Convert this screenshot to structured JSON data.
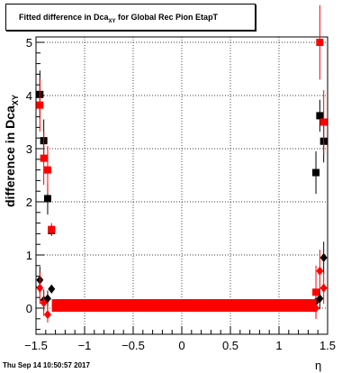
{
  "chart_data": {
    "type": "scatter",
    "title": {
      "main": "Fitted difference in Dca",
      "sub": "XY",
      "rest": " for Global Rec Pion EtapT"
    },
    "ylabel": {
      "main": "difference in Dca",
      "sub": "XY"
    },
    "xlabel": "η",
    "xlim": [
      -1.5,
      1.5
    ],
    "ylim": [
      -0.5,
      5.1
    ],
    "x_ticks": [
      -1.5,
      -1,
      -0.5,
      0,
      0.5,
      1,
      1.5
    ],
    "x_tick_labels": [
      "−1.5",
      "−1",
      "−0.5",
      "0",
      "0.5",
      "1",
      "1.5"
    ],
    "y_ticks": [
      0,
      1,
      2,
      3,
      4,
      5
    ],
    "y_tick_labels": [
      "0",
      "1",
      "2",
      "3",
      "4",
      "5"
    ],
    "grid": true,
    "series": [
      {
        "color": "#000000",
        "marker": "square",
        "points": [
          {
            "x": -1.46,
            "y": 4.02,
            "err": 0.45
          },
          {
            "x": -1.42,
            "y": 3.15,
            "err": 0.4
          },
          {
            "x": -1.38,
            "y": 2.06,
            "err": 0.3
          },
          {
            "x": -1.34,
            "y": 1.46,
            "err": 0.1
          },
          {
            "x": 1.38,
            "y": 2.55,
            "err": 0.4
          },
          {
            "x": 1.42,
            "y": 3.62,
            "err": 0.3
          },
          {
            "x": 1.46,
            "y": 3.14,
            "err": 0.4
          }
        ]
      },
      {
        "color": "#000000",
        "marker": "diamond",
        "points": [
          {
            "x": -1.46,
            "y": 0.53,
            "err": 0.25
          },
          {
            "x": -1.42,
            "y": 0.15,
            "err": 0.2
          },
          {
            "x": -1.38,
            "y": 0.18,
            "err": 0.15
          },
          {
            "x": -1.34,
            "y": 0.36,
            "err": 0.08
          },
          {
            "x": 1.38,
            "y": 0.12,
            "err": 0.15
          },
          {
            "x": 1.42,
            "y": 0.18,
            "err": 0.2
          },
          {
            "x": 1.46,
            "y": 0.95,
            "err": 0.3
          }
        ]
      },
      {
        "color": "#ff0000",
        "marker": "square",
        "points": [
          {
            "x": -1.46,
            "y": 3.82,
            "err": 0.5
          },
          {
            "x": -1.42,
            "y": 2.82,
            "err": 0.5
          },
          {
            "x": -1.38,
            "y": 2.6,
            "err": 0.45
          },
          {
            "x": -1.34,
            "y": 1.48,
            "err": 0.12
          },
          {
            "x": 1.38,
            "y": 0.3,
            "err": 0.5
          },
          {
            "x": 1.42,
            "y": 5.0,
            "err": 0.7
          },
          {
            "x": 1.46,
            "y": 3.5,
            "err": 0.6
          }
        ]
      },
      {
        "color": "#ff0000",
        "marker": "diamond",
        "points": [
          {
            "x": -1.46,
            "y": 0.38,
            "err": 0.3
          },
          {
            "x": -1.42,
            "y": 0.1,
            "err": 0.25
          },
          {
            "x": -1.38,
            "y": -0.12,
            "err": 0.15
          },
          {
            "x": 1.38,
            "y": 0.0,
            "err": 0.2
          },
          {
            "x": 1.42,
            "y": 0.7,
            "err": 0.4
          },
          {
            "x": 1.46,
            "y": 0.38,
            "err": 0.3
          }
        ]
      },
      {
        "color": "#ff0000",
        "marker": "square",
        "x_range": [
          -1.3,
          1.34
        ],
        "x_step": 0.04,
        "y_values": [
          0.1,
          0.0
        ],
        "err": 0.02
      }
    ]
  },
  "footer": {
    "timestamp": "Thu Sep 14 10:50:57 2017"
  }
}
